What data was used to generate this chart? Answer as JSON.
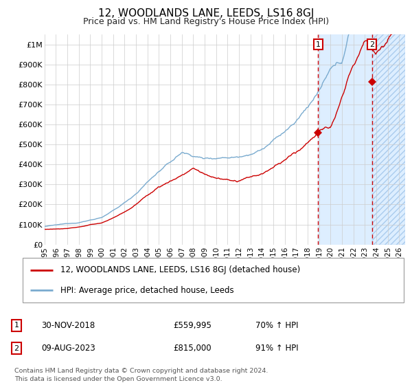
{
  "title": "12, WOODLANDS LANE, LEEDS, LS16 8GJ",
  "subtitle": "Price paid vs. HM Land Registry's House Price Index (HPI)",
  "x_start": 1995.0,
  "x_end": 2026.5,
  "y_min": 0,
  "y_max": 1050000,
  "red_line_color": "#cc0000",
  "blue_line_color": "#7aabcf",
  "background_color": "#ffffff",
  "grid_color": "#cccccc",
  "highlight_bg": "#ddeeff",
  "hatch_color": "#aaccee",
  "dashed_line_color": "#cc0000",
  "sale1_x": 2018.92,
  "sale1_y": 559995,
  "sale1_label": "1",
  "sale1_date": "30-NOV-2018",
  "sale1_price": "£559,995",
  "sale1_hpi": "70% ↑ HPI",
  "sale2_x": 2023.61,
  "sale2_y": 815000,
  "sale2_label": "2",
  "sale2_date": "09-AUG-2023",
  "sale2_price": "£815,000",
  "sale2_hpi": "91% ↑ HPI",
  "legend_line1": "12, WOODLANDS LANE, LEEDS, LS16 8GJ (detached house)",
  "legend_line2": "HPI: Average price, detached house, Leeds",
  "footer": "Contains HM Land Registry data © Crown copyright and database right 2024.\nThis data is licensed under the Open Government Licence v3.0.",
  "yticks": [
    0,
    100000,
    200000,
    300000,
    400000,
    500000,
    600000,
    700000,
    800000,
    900000,
    1000000
  ],
  "ytick_labels": [
    "£0",
    "£100K",
    "£200K",
    "£300K",
    "£400K",
    "£500K",
    "£600K",
    "£700K",
    "£800K",
    "£900K",
    "£1M"
  ],
  "xticks": [
    1995,
    1996,
    1997,
    1998,
    1999,
    2000,
    2001,
    2002,
    2003,
    2004,
    2005,
    2006,
    2007,
    2008,
    2009,
    2010,
    2011,
    2012,
    2013,
    2014,
    2015,
    2016,
    2017,
    2018,
    2019,
    2020,
    2021,
    2022,
    2023,
    2024,
    2025,
    2026
  ]
}
